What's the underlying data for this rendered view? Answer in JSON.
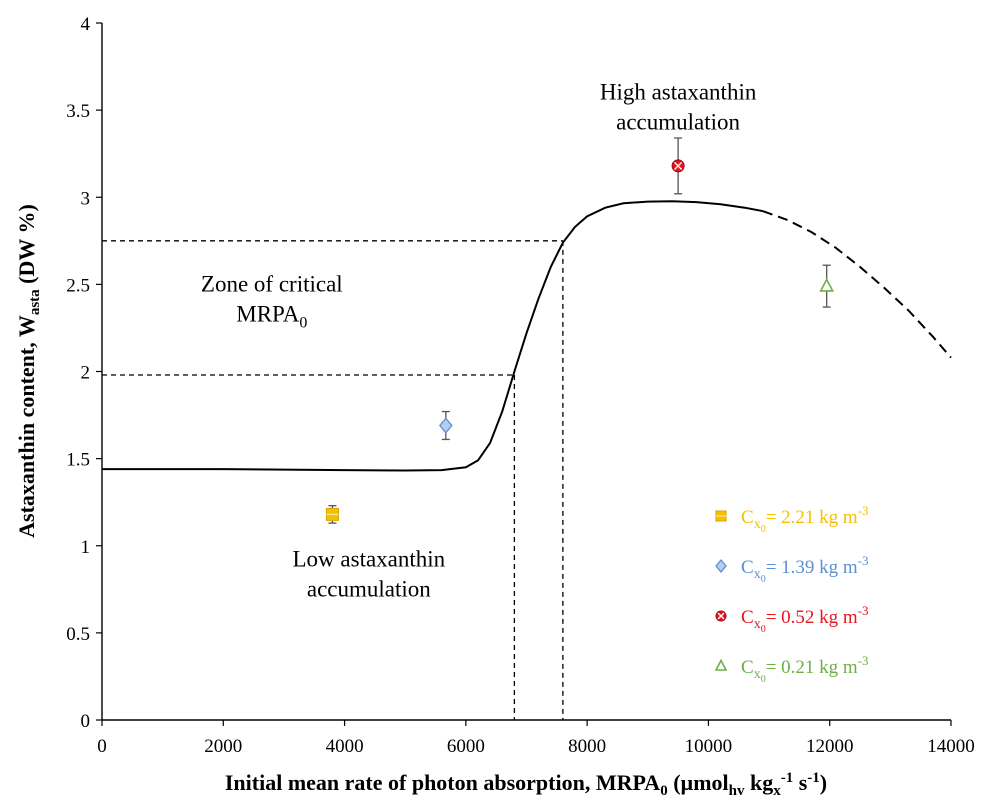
{
  "chart_data": {
    "type": "scatter",
    "xlabel": "Initial mean rate of photon absorption, MRPA",
    "xlabel_sub0": "0",
    "xlabel_unit_open": " (µmol",
    "xlabel_sub_hv": "hv",
    "xlabel_unit_mid": " kg",
    "xlabel_sub_x": "x",
    "xlabel_sup_1": "-1",
    "xlabel_unit_s": " s",
    "xlabel_sup_2": "-1",
    "xlabel_close": ")",
    "ylabel_main": "Astaxanthin content, W",
    "ylabel_sub": "asta",
    "ylabel_unit": " (DW %)",
    "xlim": [
      0,
      14000
    ],
    "ylim": [
      0,
      4
    ],
    "xticks": [
      0,
      2000,
      4000,
      6000,
      8000,
      10000,
      12000,
      14000
    ],
    "yticks": [
      0,
      0.5,
      1,
      1.5,
      2,
      2.5,
      3,
      3.5,
      4
    ],
    "ytick_labels": [
      "0",
      "0.5",
      "1",
      "1.5",
      "2",
      "2.5",
      "3",
      "3.5",
      "4"
    ],
    "grid": false,
    "legend_position": "bottom-right",
    "series": [
      {
        "name": "C",
        "sub": "x",
        "sub2": "0",
        "value_text": "= 2.21 kg m",
        "sup": "-3",
        "color": "#f5c000",
        "marker": "square",
        "x": [
          3800
        ],
        "y": [
          1.18
        ],
        "err": [
          0.05
        ]
      },
      {
        "name": "C",
        "sub": "x",
        "sub2": "0",
        "value_text": "= 1.39 kg m",
        "sup": "-3",
        "color": "#5b8fd6",
        "marker": "diamond",
        "x": [
          5670
        ],
        "y": [
          1.69
        ],
        "err": [
          0.08
        ]
      },
      {
        "name": "C",
        "sub": "x",
        "sub2": "0",
        "value_text": "= 0.52 kg m",
        "sup": "-3",
        "color": "#e8141e",
        "marker": "circle-x",
        "x": [
          9500
        ],
        "y": [
          3.18
        ],
        "err": [
          0.16
        ]
      },
      {
        "name": "C",
        "sub": "x",
        "sub2": "0",
        "value_text": "= 0.21 kg m",
        "sup": "-3",
        "color": "#70ad47",
        "marker": "triangle",
        "x": [
          11950
        ],
        "y": [
          2.49
        ],
        "err": [
          0.12
        ]
      }
    ],
    "trend_solid": {
      "x": [
        0,
        1000,
        2000,
        3000,
        4000,
        5000,
        5600,
        6000,
        6200,
        6400,
        6600,
        6800,
        7000,
        7200,
        7400,
        7600,
        7800,
        8000,
        8300,
        8600,
        9000,
        9400,
        9800,
        10200,
        10600,
        10900
      ],
      "y": [
        1.44,
        1.44,
        1.44,
        1.437,
        1.434,
        1.432,
        1.434,
        1.45,
        1.49,
        1.59,
        1.77,
        2.0,
        2.22,
        2.42,
        2.6,
        2.74,
        2.83,
        2.89,
        2.94,
        2.965,
        2.975,
        2.977,
        2.972,
        2.96,
        2.94,
        2.92
      ]
    },
    "trend_dashed": {
      "x": [
        10900,
        11300,
        11700,
        12100,
        12500,
        12900,
        13300,
        13700,
        14000
      ],
      "y": [
        2.92,
        2.87,
        2.8,
        2.71,
        2.6,
        2.48,
        2.35,
        2.2,
        2.08
      ]
    },
    "reference_lines": [
      {
        "y": 1.98,
        "x": 6800
      },
      {
        "y": 2.75,
        "x": 7600
      }
    ],
    "annotations": [
      {
        "lines": [
          "High astaxanthin",
          "accumulation"
        ],
        "x": 9500,
        "y": 3.56
      },
      {
        "lines": [
          "Zone of critical",
          "MRPA"
        ],
        "sub": "0",
        "x": 2800,
        "y": 2.46
      },
      {
        "lines": [
          "Low astaxanthin",
          "accumulation"
        ],
        "x": 4400,
        "y": 0.88
      }
    ]
  }
}
